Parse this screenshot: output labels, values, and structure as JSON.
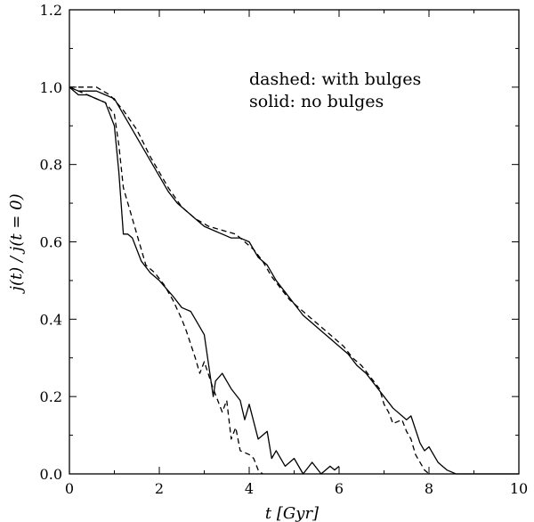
{
  "chart_data": {
    "type": "line",
    "title": "",
    "xlabel": "t [Gyr]",
    "ylabel": "j(t) / j(t = 0)",
    "xlim": [
      0,
      10
    ],
    "ylim": [
      0.0,
      1.2
    ],
    "x_ticks": [
      "0",
      "2",
      "4",
      "6",
      "8",
      "10"
    ],
    "y_ticks": [
      "0.0",
      "0.2",
      "0.4",
      "0.6",
      "0.8",
      "1.0",
      "1.2"
    ],
    "annotations": [
      "dashed: with bulges",
      "solid: no bulges"
    ],
    "grid": false,
    "series": [
      {
        "style": "solid",
        "x": [
          0,
          0.2,
          0.4,
          0.6,
          0.8,
          1.0,
          1.1,
          1.2,
          1.3,
          1.4,
          1.6,
          1.8,
          2.0,
          2.3,
          2.5,
          2.7,
          2.8,
          3.0,
          3.1,
          3.2,
          3.25,
          3.4,
          3.6,
          3.8,
          3.9,
          4.0,
          4.2,
          4.4,
          4.5,
          4.6,
          4.8,
          5.0,
          5.2,
          5.4,
          5.6,
          5.8,
          5.9,
          6.0
        ],
        "values": [
          1.0,
          0.98,
          0.98,
          0.97,
          0.96,
          0.9,
          0.78,
          0.62,
          0.62,
          0.61,
          0.55,
          0.52,
          0.5,
          0.46,
          0.43,
          0.42,
          0.4,
          0.36,
          0.28,
          0.2,
          0.24,
          0.26,
          0.22,
          0.19,
          0.14,
          0.18,
          0.09,
          0.11,
          0.04,
          0.06,
          0.02,
          0.04,
          0.0,
          0.03,
          0.0,
          0.02,
          0.01,
          0.02
        ]
      },
      {
        "style": "dashed",
        "x": [
          0,
          0.2,
          0.4,
          0.6,
          0.8,
          1.0,
          1.1,
          1.2,
          1.3,
          1.5,
          1.7,
          1.9,
          2.1,
          2.3,
          2.5,
          2.6,
          2.8,
          2.9,
          3.0,
          3.2,
          3.4,
          3.5,
          3.6,
          3.7,
          3.8,
          4.0,
          4.1,
          4.2,
          4.3
        ],
        "values": [
          1.0,
          0.99,
          0.98,
          0.97,
          0.96,
          0.93,
          0.85,
          0.74,
          0.7,
          0.62,
          0.54,
          0.52,
          0.49,
          0.45,
          0.4,
          0.37,
          0.3,
          0.26,
          0.29,
          0.22,
          0.16,
          0.19,
          0.09,
          0.12,
          0.06,
          0.05,
          0.04,
          0.01,
          0.0
        ]
      },
      {
        "style": "solid",
        "x": [
          0,
          0.2,
          0.4,
          0.6,
          0.8,
          1.0,
          1.2,
          1.4,
          1.6,
          1.8,
          2.0,
          2.2,
          2.4,
          2.6,
          2.8,
          3.0,
          3.2,
          3.4,
          3.6,
          3.8,
          4.0,
          4.2,
          4.4,
          4.6,
          4.8,
          5.0,
          5.2,
          5.4,
          5.6,
          5.8,
          6.0,
          6.2,
          6.4,
          6.6,
          6.8,
          7.0,
          7.2,
          7.4,
          7.5,
          7.6,
          7.8,
          7.9,
          8.0,
          8.2,
          8.3,
          8.4,
          8.6,
          8.8,
          9.0,
          9.5,
          10.0
        ],
        "values": [
          1.0,
          0.99,
          0.99,
          0.99,
          0.98,
          0.97,
          0.93,
          0.89,
          0.85,
          0.81,
          0.77,
          0.73,
          0.7,
          0.68,
          0.66,
          0.64,
          0.63,
          0.62,
          0.61,
          0.61,
          0.6,
          0.56,
          0.54,
          0.5,
          0.47,
          0.44,
          0.41,
          0.39,
          0.37,
          0.35,
          0.33,
          0.31,
          0.28,
          0.26,
          0.23,
          0.2,
          0.17,
          0.15,
          0.14,
          0.15,
          0.08,
          0.06,
          0.07,
          0.03,
          0.02,
          0.01,
          0.0,
          0.0,
          0.0,
          0.0,
          0.0
        ]
      },
      {
        "style": "dashed",
        "x": [
          0,
          0.3,
          0.6,
          0.9,
          1.2,
          1.5,
          1.8,
          2.0,
          2.2,
          2.5,
          2.8,
          3.1,
          3.4,
          3.7,
          3.9,
          4.1,
          4.3,
          4.5,
          4.7,
          4.9,
          5.1,
          5.3,
          5.5,
          5.7,
          5.9,
          6.1,
          6.3,
          6.5,
          6.7,
          6.9,
          7.0,
          7.1,
          7.2,
          7.4,
          7.5,
          7.6,
          7.7,
          7.8,
          7.9,
          8.0
        ],
        "values": [
          1.0,
          1.0,
          1.0,
          0.98,
          0.94,
          0.89,
          0.82,
          0.78,
          0.74,
          0.69,
          0.66,
          0.64,
          0.63,
          0.62,
          0.6,
          0.58,
          0.55,
          0.51,
          0.48,
          0.45,
          0.43,
          0.41,
          0.39,
          0.37,
          0.35,
          0.33,
          0.3,
          0.28,
          0.25,
          0.22,
          0.18,
          0.16,
          0.13,
          0.14,
          0.11,
          0.09,
          0.05,
          0.03,
          0.01,
          0.0
        ]
      }
    ]
  }
}
